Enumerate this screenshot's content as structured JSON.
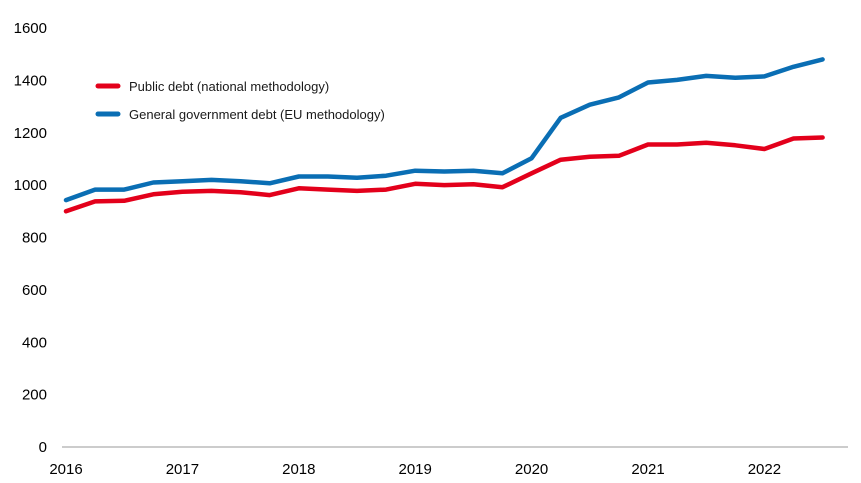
{
  "chart_data": {
    "type": "line",
    "title": "",
    "xlabel": "",
    "ylabel": "",
    "ylim": [
      0,
      1600
    ],
    "yticks": [
      0,
      200,
      400,
      600,
      800,
      1000,
      1200,
      1400,
      1600
    ],
    "xticks": [
      "2016",
      "2017",
      "2018",
      "2019",
      "2020",
      "2021",
      "2022"
    ],
    "grid": false,
    "legend_position": "upper-left",
    "x": [
      "2016-Q1",
      "2016-Q2",
      "2016-Q3",
      "2016-Q4",
      "2017-Q1",
      "2017-Q2",
      "2017-Q3",
      "2017-Q4",
      "2018-Q1",
      "2018-Q2",
      "2018-Q3",
      "2018-Q4",
      "2019-Q1",
      "2019-Q2",
      "2019-Q3",
      "2019-Q4",
      "2020-Q1",
      "2020-Q2",
      "2020-Q3",
      "2020-Q4",
      "2021-Q1",
      "2021-Q2",
      "2021-Q3",
      "2021-Q4",
      "2022-Q1",
      "2022-Q2",
      "2022-Q3"
    ],
    "series": [
      {
        "name": "Public debt (national methodology)",
        "color": "#e3001b",
        "values": [
          900,
          938,
          940,
          965,
          975,
          978,
          973,
          962,
          988,
          983,
          978,
          983,
          1005,
          1000,
          1003,
          992,
          1045,
          1097,
          1108,
          1112,
          1155,
          1155,
          1162,
          1152,
          1138,
          1178,
          1182
        ]
      },
      {
        "name": "General government debt (EU methodology)",
        "color": "#0a6eb4",
        "values": [
          943,
          983,
          983,
          1010,
          1015,
          1020,
          1015,
          1007,
          1033,
          1033,
          1028,
          1036,
          1055,
          1052,
          1055,
          1045,
          1103,
          1257,
          1307,
          1335,
          1392,
          1402,
          1417,
          1410,
          1415,
          1452,
          1480
        ]
      }
    ]
  }
}
